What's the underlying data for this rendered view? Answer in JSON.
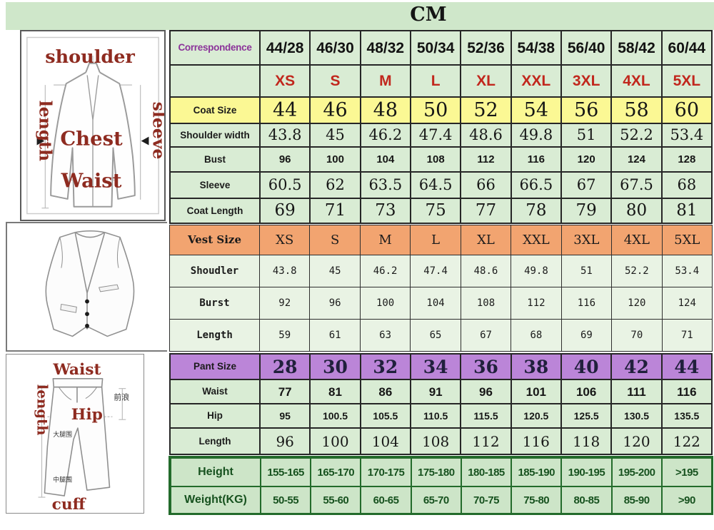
{
  "title": "CM",
  "colors": {
    "band_green": "#cfe7ca",
    "cell_green": "#d9ecd4",
    "cell_green_pale": "#e9f3e4",
    "coat_row_yellow": "#fbf894",
    "vest_row_orange": "#f2a470",
    "pant_row_purple": "#bb85d8",
    "body_green": "#cde5c8",
    "body_border_green": "#236b2b",
    "size_red": "#c1271d",
    "correspondence_purple": "#8b3399",
    "diagram_label_red": "#8e2b20"
  },
  "diagrams": {
    "jacket": {
      "shoulder": "shoulder",
      "length": "length",
      "sleeve": "sleeve",
      "chest": "Chest",
      "waist": "Waist"
    },
    "pants": {
      "waist": "Waist",
      "length": "length",
      "hip": "Hip",
      "cuff": "cuff",
      "front_rise": "前浪",
      "thigh": "大腿围",
      "mid_leg": "中腿围"
    }
  },
  "table": {
    "correspondence": {
      "label": "Correspondence",
      "values": [
        "44/28",
        "46/30",
        "48/32",
        "50/34",
        "52/36",
        "54/38",
        "56/40",
        "58/42",
        "60/44"
      ]
    },
    "sizes": {
      "label": "",
      "values": [
        "XS",
        "S",
        "M",
        "L",
        "XL",
        "XXL",
        "3XL",
        "4XL",
        "5XL"
      ]
    },
    "coat": {
      "rows": [
        {
          "label": "Coat Size",
          "values": [
            "44",
            "46",
            "48",
            "50",
            "52",
            "54",
            "56",
            "58",
            "60"
          ]
        },
        {
          "label": "Shoulder width",
          "values": [
            "43.8",
            "45",
            "46.2",
            "47.4",
            "48.6",
            "49.8",
            "51",
            "52.2",
            "53.4"
          ]
        },
        {
          "label": "Bust",
          "values": [
            "96",
            "100",
            "104",
            "108",
            "112",
            "116",
            "120",
            "124",
            "128"
          ]
        },
        {
          "label": "Sleeve",
          "values": [
            "60.5",
            "62",
            "63.5",
            "64.5",
            "66",
            "66.5",
            "67",
            "67.5",
            "68"
          ]
        },
        {
          "label": "Coat Length",
          "values": [
            "69",
            "71",
            "73",
            "75",
            "77",
            "78",
            "79",
            "80",
            "81"
          ]
        }
      ]
    },
    "vest": {
      "rows": [
        {
          "label": "Vest Size",
          "values": [
            "XS",
            "S",
            "M",
            "L",
            "XL",
            "XXL",
            "3XL",
            "4XL",
            "5XL"
          ]
        },
        {
          "label": "Shoudler",
          "values": [
            "43.8",
            "45",
            "46.2",
            "47.4",
            "48.6",
            "49.8",
            "51",
            "52.2",
            "53.4"
          ]
        },
        {
          "label": "Burst",
          "values": [
            "92",
            "96",
            "100",
            "104",
            "108",
            "112",
            "116",
            "120",
            "124"
          ]
        },
        {
          "label": "Length",
          "values": [
            "59",
            "61",
            "63",
            "65",
            "67",
            "68",
            "69",
            "70",
            "71"
          ]
        }
      ]
    },
    "pant": {
      "rows": [
        {
          "label": "Pant Size",
          "values": [
            "28",
            "30",
            "32",
            "34",
            "36",
            "38",
            "40",
            "42",
            "44"
          ]
        },
        {
          "label": "Waist",
          "values": [
            "77",
            "81",
            "86",
            "91",
            "96",
            "101",
            "106",
            "111",
            "116"
          ]
        },
        {
          "label": "Hip",
          "values": [
            "95",
            "100.5",
            "105.5",
            "110.5",
            "115.5",
            "120.5",
            "125.5",
            "130.5",
            "135.5"
          ]
        },
        {
          "label": "Length",
          "values": [
            "96",
            "100",
            "104",
            "108",
            "112",
            "116",
            "118",
            "120",
            "122"
          ]
        }
      ]
    },
    "body": {
      "rows": [
        {
          "label": "Height",
          "values": [
            "155-165",
            "165-170",
            "170-175",
            "175-180",
            "180-185",
            "185-190",
            "190-195",
            "195-200",
            ">195"
          ]
        },
        {
          "label": "Weight(KG)",
          "values": [
            "50-55",
            "55-60",
            "60-65",
            "65-70",
            "70-75",
            "75-80",
            "80-85",
            "85-90",
            ">90"
          ]
        }
      ]
    }
  }
}
